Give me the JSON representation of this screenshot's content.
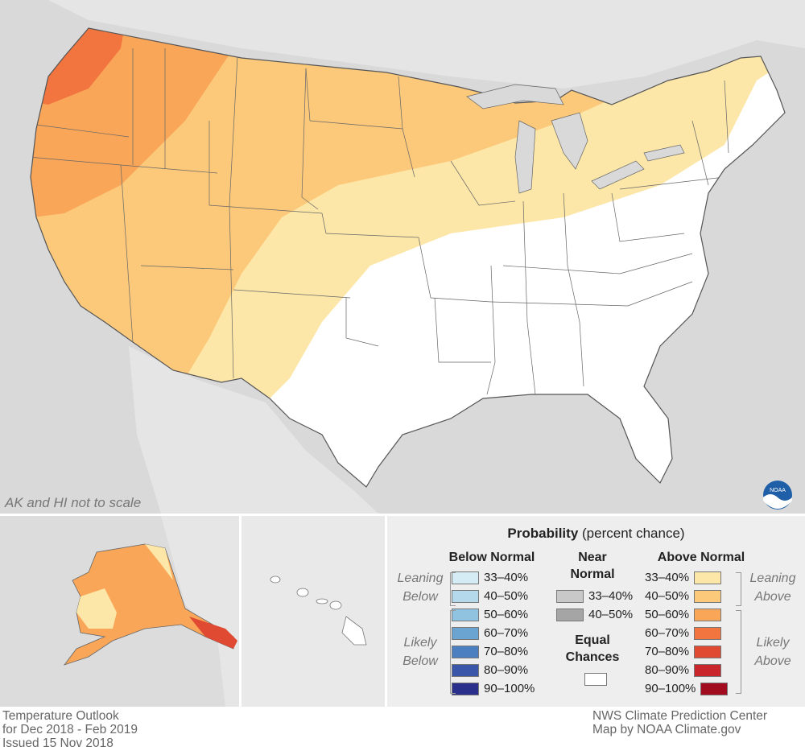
{
  "map": {
    "scale_note": "AK and HI not to scale",
    "logo_text": "NOAA"
  },
  "legend": {
    "title_bold": "Probability",
    "title_rest": " (percent chance)",
    "below_header": "Below Normal",
    "near_header_1": "Near",
    "near_header_2": "Normal",
    "above_header": "Above Normal",
    "equal_1": "Equal",
    "equal_2": "Chances",
    "leaning_below_1": "Leaning",
    "leaning_below_2": "Below",
    "likely_below_1": "Likely",
    "likely_below_2": "Below",
    "leaning_above_1": "Leaning",
    "leaning_above_2": "Above",
    "likely_above_1": "Likely",
    "likely_above_2": "Above",
    "below": [
      {
        "label": "33–40%",
        "color": "#d6ecf5"
      },
      {
        "label": "40–50%",
        "color": "#b3d9ea"
      },
      {
        "label": "50–60%",
        "color": "#8fc3df"
      },
      {
        "label": "60–70%",
        "color": "#6ba4d0"
      },
      {
        "label": "70–80%",
        "color": "#4b7fc0"
      },
      {
        "label": "80–90%",
        "color": "#3956a8"
      },
      {
        "label": "90–100%",
        "color": "#2b2f8c"
      }
    ],
    "near": [
      {
        "label": "33–40%",
        "color": "#c8c8c8"
      },
      {
        "label": "40–50%",
        "color": "#a5a5a5"
      }
    ],
    "above": [
      {
        "label": "33–40%",
        "color": "#fde7a8"
      },
      {
        "label": "40–50%",
        "color": "#fcc97a"
      },
      {
        "label": "50–60%",
        "color": "#f9a658"
      },
      {
        "label": "60–70%",
        "color": "#f2743f"
      },
      {
        "label": "70–80%",
        "color": "#e04a32"
      },
      {
        "label": "80–90%",
        "color": "#c8262b"
      },
      {
        "label": "90–100%",
        "color": "#a10d1f"
      }
    ],
    "equal_color": "#ffffff"
  },
  "footer": {
    "left_1": "Temperature Outlook",
    "left_2": "for Dec 2018 - Feb 2019",
    "left_3": "Issued 15 Nov 2018",
    "right_1": "NWS Climate Prediction Center",
    "right_2": "Map by NOAA Climate.gov"
  }
}
